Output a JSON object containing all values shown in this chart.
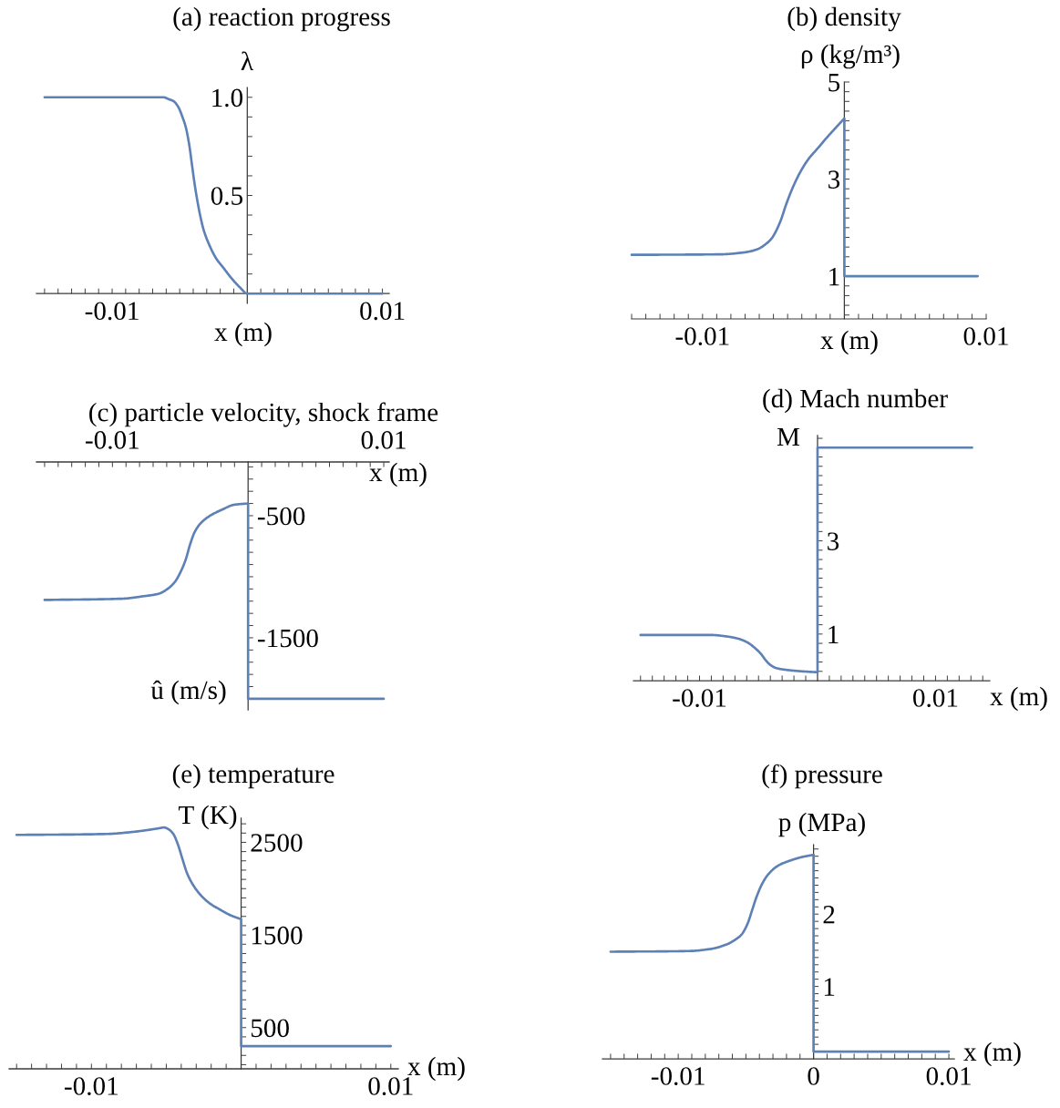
{
  "chart_data": [
    {
      "type": "line",
      "title": "(a) reaction progress",
      "xlabel": "x (m)",
      "ylabel": "λ",
      "xlim": [
        -0.0156,
        0.0105
      ],
      "ylim": [
        -0.05,
        1.05
      ],
      "xticks": [
        {
          "value": -0.015,
          "label": null
        },
        {
          "value": -0.014,
          "label": null
        },
        {
          "value": -0.013,
          "label": null
        },
        {
          "value": -0.012,
          "label": null
        },
        {
          "value": -0.011,
          "label": null
        },
        -0.01,
        {
          "value": -0.009,
          "label": null
        },
        {
          "value": -0.008,
          "label": null
        },
        {
          "value": -0.007,
          "label": null
        },
        {
          "value": -0.006,
          "label": null
        },
        {
          "value": -0.005,
          "label": null
        },
        {
          "value": -0.004,
          "label": null
        },
        {
          "value": -0.003,
          "label": null
        },
        {
          "value": -0.002,
          "label": null
        },
        {
          "value": -0.001,
          "label": null
        },
        {
          "value": 0.001,
          "label": null
        },
        {
          "value": 0.002,
          "label": null
        },
        {
          "value": 0.003,
          "label": null
        },
        {
          "value": 0.004,
          "label": null
        },
        {
          "value": 0.005,
          "label": null
        },
        {
          "value": 0.006,
          "label": null
        },
        {
          "value": 0.007,
          "label": null
        },
        {
          "value": 0.008,
          "label": null
        },
        {
          "value": 0.009,
          "label": null
        },
        0.01
      ],
      "yticks": [
        {
          "value": 0.1,
          "label": null
        },
        {
          "value": 0.2,
          "label": null
        },
        {
          "value": 0.3,
          "label": null
        },
        {
          "value": 0.4,
          "label": null
        },
        0.5,
        {
          "value": 0.6,
          "label": null
        },
        {
          "value": 0.7,
          "label": null
        },
        {
          "value": 0.8,
          "label": null
        },
        {
          "value": 0.9,
          "label": null
        },
        {
          "value": 1,
          "label": "1.0"
        }
      ],
      "series": [
        {
          "color": "#5e81b5",
          "x": [
            -0.015,
            -0.008,
            -0.0062,
            -0.0058,
            -0.00545,
            -0.0051,
            -0.0048,
            -0.00456,
            -0.0043,
            -0.0041,
            -0.0039,
            -0.00366,
            -0.00343,
            -0.00321,
            -0.00276,
            -0.00231,
            -0.00175,
            -0.00119,
            -0.00052,
            0,
            0.01
          ],
          "values": [
            1,
            1,
            1,
            0.99,
            0.98,
            0.95,
            0.9,
            0.85,
            0.76,
            0.66,
            0.56,
            0.46,
            0.38,
            0.32,
            0.24,
            0.18,
            0.13,
            0.08,
            0.03,
            0,
            0
          ]
        }
      ]
    },
    {
      "type": "line",
      "title": "(b) density",
      "xlabel": "x (m)",
      "ylabel": "ρ (kg/m³)",
      "xlim": [
        -0.015,
        0.01
      ],
      "ylim": [
        0.12,
        5
      ],
      "xticks": [
        {
          "value": -0.015,
          "label": null
        },
        {
          "value": -0.014,
          "label": null
        },
        {
          "value": -0.013,
          "label": null
        },
        {
          "value": -0.012,
          "label": null
        },
        {
          "value": -0.011,
          "label": null
        },
        -0.01,
        {
          "value": -0.009,
          "label": null
        },
        {
          "value": -0.008,
          "label": null
        },
        {
          "value": -0.007,
          "label": null
        },
        {
          "value": -0.006,
          "label": null
        },
        {
          "value": -0.005,
          "label": null
        },
        {
          "value": -0.004,
          "label": null
        },
        {
          "value": -0.003,
          "label": null
        },
        {
          "value": -0.002,
          "label": null
        },
        {
          "value": -0.001,
          "label": null
        },
        {
          "value": 0.001,
          "label": null
        },
        {
          "value": 0.002,
          "label": null
        },
        {
          "value": 0.003,
          "label": null
        },
        {
          "value": 0.004,
          "label": null
        },
        {
          "value": 0.005,
          "label": null
        },
        {
          "value": 0.006,
          "label": null
        },
        {
          "value": 0.007,
          "label": null
        },
        {
          "value": 0.008,
          "label": null
        },
        {
          "value": 0.009,
          "label": null
        },
        0.01
      ],
      "yticks": [
        {
          "value": 0.2,
          "label": null
        },
        {
          "value": 0.4,
          "label": null
        },
        {
          "value": 0.6,
          "label": null
        },
        {
          "value": 0.8,
          "label": null
        },
        1,
        {
          "value": 1.2,
          "label": null
        },
        {
          "value": 1.4,
          "label": null
        },
        {
          "value": 1.6,
          "label": null
        },
        {
          "value": 1.8,
          "label": null
        },
        {
          "value": 2,
          "label": null
        },
        {
          "value": 2.2,
          "label": null
        },
        {
          "value": 2.4,
          "label": null
        },
        {
          "value": 2.6,
          "label": null
        },
        {
          "value": 2.8,
          "label": null
        },
        3,
        {
          "value": 3.2,
          "label": null
        },
        {
          "value": 3.4,
          "label": null
        },
        {
          "value": 3.6,
          "label": null
        },
        {
          "value": 3.8,
          "label": null
        },
        {
          "value": 4,
          "label": null
        },
        {
          "value": 4.2,
          "label": null
        },
        {
          "value": 4.4,
          "label": null
        },
        {
          "value": 4.6,
          "label": null
        },
        {
          "value": 4.8,
          "label": null
        },
        5
      ],
      "series": [
        {
          "color": "#5e81b5",
          "x": [
            -0.015,
            -0.00877,
            -0.00705,
            -0.00609,
            -0.00555,
            -0.00512,
            -0.0048,
            -0.00447,
            -0.00415,
            -0.00383,
            -0.00351,
            -0.00308,
            -0.00254,
            -0.00189,
            -0.00125,
            -0.0006,
            0,
            0,
            0.0094
          ],
          "values": [
            1.44,
            1.45,
            1.49,
            1.56,
            1.66,
            1.78,
            1.94,
            2.16,
            2.44,
            2.69,
            2.91,
            3.16,
            3.41,
            3.63,
            3.85,
            4.06,
            4.25,
            1.0,
            1.0
          ]
        }
      ]
    },
    {
      "type": "line",
      "title": "(c) particle velocity, shock frame",
      "xlabel": "x (m)",
      "ylabel": "û (m/s)",
      "xlim": [
        -0.0156,
        0.0104
      ],
      "ylim": [
        -2090,
        -60
      ],
      "xticks": [
        {
          "value": -0.015,
          "label": null
        },
        {
          "value": -0.014,
          "label": null
        },
        {
          "value": -0.013,
          "label": null
        },
        {
          "value": -0.012,
          "label": null
        },
        {
          "value": -0.011,
          "label": null
        },
        -0.01,
        {
          "value": -0.009,
          "label": null
        },
        {
          "value": -0.008,
          "label": null
        },
        {
          "value": -0.007,
          "label": null
        },
        {
          "value": -0.006,
          "label": null
        },
        {
          "value": -0.005,
          "label": null
        },
        {
          "value": -0.004,
          "label": null
        },
        {
          "value": -0.003,
          "label": null
        },
        {
          "value": -0.002,
          "label": null
        },
        {
          "value": -0.001,
          "label": null
        },
        {
          "value": 0.001,
          "label": null
        },
        {
          "value": 0.002,
          "label": null
        },
        {
          "value": 0.003,
          "label": null
        },
        {
          "value": 0.004,
          "label": null
        },
        {
          "value": 0.005,
          "label": null
        },
        {
          "value": 0.006,
          "label": null
        },
        {
          "value": 0.007,
          "label": null
        },
        {
          "value": 0.008,
          "label": null
        },
        {
          "value": 0.009,
          "label": null
        },
        0.01
      ],
      "yticks": [
        {
          "value": -2000,
          "label": null
        },
        {
          "value": -1900,
          "label": null
        },
        {
          "value": -1800,
          "label": null
        },
        {
          "value": -1700,
          "label": null
        },
        {
          "value": -1600,
          "label": null
        },
        -1500,
        {
          "value": -1400,
          "label": null
        },
        {
          "value": -1300,
          "label": null
        },
        {
          "value": -1200,
          "label": null
        },
        {
          "value": -1100,
          "label": null
        },
        {
          "value": -1000,
          "label": null
        },
        {
          "value": -900,
          "label": null
        },
        {
          "value": -800,
          "label": null
        },
        {
          "value": -700,
          "label": null
        },
        {
          "value": -600,
          "label": null
        },
        -500,
        {
          "value": -400,
          "label": null
        },
        {
          "value": -300,
          "label": null
        },
        {
          "value": -200,
          "label": null
        },
        {
          "value": -100,
          "label": null
        }
      ],
      "series": [
        {
          "color": "#5e81b5",
          "x": [
            -0.015,
            -0.0093,
            -0.00774,
            -0.00661,
            -0.00594,
            -0.00538,
            -0.00493,
            -0.0046,
            -0.00426,
            -0.00392,
            -0.00348,
            -0.0028,
            -0.00191,
            -0.00101,
            0,
            0,
            0.01
          ],
          "values": [
            -1190,
            -1180,
            -1160,
            -1140,
            -1100,
            -1040,
            -950,
            -860,
            -730,
            -630,
            -560,
            -500,
            -450,
            -410,
            -400,
            -2000,
            -2000
          ]
        }
      ]
    },
    {
      "type": "line",
      "title": "(d) Mach number",
      "xlabel": "x (m)",
      "ylabel": "M",
      "xlim": [
        -0.0156,
        0.0146
      ],
      "ylim": [
        0,
        5.26
      ],
      "xticks": [
        {
          "value": -0.015,
          "label": null
        },
        {
          "value": -0.014,
          "label": null
        },
        {
          "value": -0.013,
          "label": null
        },
        {
          "value": -0.012,
          "label": null
        },
        {
          "value": -0.011,
          "label": null
        },
        -0.01,
        {
          "value": -0.009,
          "label": null
        },
        {
          "value": -0.008,
          "label": null
        },
        {
          "value": -0.007,
          "label": null
        },
        {
          "value": -0.006,
          "label": null
        },
        {
          "value": -0.005,
          "label": null
        },
        {
          "value": -0.004,
          "label": null
        },
        {
          "value": -0.003,
          "label": null
        },
        {
          "value": -0.002,
          "label": null
        },
        {
          "value": -0.001,
          "label": null
        },
        {
          "value": 0.001,
          "label": null
        },
        {
          "value": 0.002,
          "label": null
        },
        {
          "value": 0.003,
          "label": null
        },
        {
          "value": 0.004,
          "label": null
        },
        {
          "value": 0.005,
          "label": null
        },
        {
          "value": 0.006,
          "label": null
        },
        {
          "value": 0.007,
          "label": null
        },
        {
          "value": 0.008,
          "label": null
        },
        {
          "value": 0.009,
          "label": null
        },
        0.01,
        {
          "value": 0.011,
          "label": null
        },
        {
          "value": 0.012,
          "label": null
        },
        {
          "value": 0.013,
          "label": null
        },
        {
          "value": 0.014,
          "label": null
        }
      ],
      "yticks": [
        {
          "value": 0.2,
          "label": null
        },
        {
          "value": 0.4,
          "label": null
        },
        {
          "value": 0.6,
          "label": null
        },
        {
          "value": 0.8,
          "label": null
        },
        1,
        {
          "value": 1.2,
          "label": null
        },
        {
          "value": 1.4,
          "label": null
        },
        {
          "value": 1.6,
          "label": null
        },
        {
          "value": 1.8,
          "label": null
        },
        {
          "value": 2,
          "label": null
        },
        {
          "value": 2.2,
          "label": null
        },
        {
          "value": 2.4,
          "label": null
        },
        {
          "value": 2.6,
          "label": null
        },
        {
          "value": 2.8,
          "label": null
        },
        3,
        {
          "value": 3.2,
          "label": null
        },
        {
          "value": 3.4,
          "label": null
        },
        {
          "value": 3.6,
          "label": null
        },
        {
          "value": 3.8,
          "label": null
        },
        {
          "value": 4,
          "label": null
        },
        {
          "value": 4.2,
          "label": null
        },
        {
          "value": 4.4,
          "label": null
        },
        {
          "value": 4.6,
          "label": null
        },
        {
          "value": 4.8,
          "label": null
        },
        {
          "value": 5,
          "label": null
        },
        {
          "value": 5.2,
          "label": null
        }
      ],
      "series": [
        {
          "color": "#5e81b5",
          "x": [
            -0.015,
            -0.009,
            -0.00774,
            -0.00671,
            -0.00594,
            -0.0053,
            -0.00478,
            -0.0044,
            -0.00401,
            -0.0035,
            -0.0026,
            -0.00131,
            0,
            0,
            0.0131
          ],
          "values": [
            0.98,
            0.98,
            0.95,
            0.9,
            0.82,
            0.7,
            0.57,
            0.44,
            0.34,
            0.27,
            0.23,
            0.2,
            0.18,
            5.0,
            5.0
          ]
        }
      ]
    },
    {
      "type": "line",
      "title": "(e) temperature",
      "xlabel": "x (m)",
      "ylabel": "T (K)",
      "xlim": [
        -0.0155,
        0.0105
      ],
      "ylim": [
        55,
        2760
      ],
      "xticks": [
        {
          "value": -0.015,
          "label": null
        },
        {
          "value": -0.014,
          "label": null
        },
        {
          "value": -0.013,
          "label": null
        },
        {
          "value": -0.012,
          "label": null
        },
        {
          "value": -0.011,
          "label": null
        },
        -0.01,
        {
          "value": -0.009,
          "label": null
        },
        {
          "value": -0.008,
          "label": null
        },
        {
          "value": -0.007,
          "label": null
        },
        {
          "value": -0.006,
          "label": null
        },
        {
          "value": -0.005,
          "label": null
        },
        {
          "value": -0.004,
          "label": null
        },
        {
          "value": -0.003,
          "label": null
        },
        {
          "value": -0.002,
          "label": null
        },
        {
          "value": -0.001,
          "label": null
        },
        {
          "value": 0.001,
          "label": null
        },
        {
          "value": 0.002,
          "label": null
        },
        {
          "value": 0.003,
          "label": null
        },
        {
          "value": 0.004,
          "label": null
        },
        {
          "value": 0.005,
          "label": null
        },
        {
          "value": 0.006,
          "label": null
        },
        {
          "value": 0.007,
          "label": null
        },
        {
          "value": 0.008,
          "label": null
        },
        {
          "value": 0.009,
          "label": null
        },
        0.01
      ],
      "yticks": [
        {
          "value": 100,
          "label": null
        },
        {
          "value": 200,
          "label": null
        },
        {
          "value": 300,
          "label": null
        },
        {
          "value": 400,
          "label": null
        },
        500,
        {
          "value": 600,
          "label": null
        },
        {
          "value": 700,
          "label": null
        },
        {
          "value": 800,
          "label": null
        },
        {
          "value": 900,
          "label": null
        },
        {
          "value": 1000,
          "label": null
        },
        {
          "value": 1100,
          "label": null
        },
        {
          "value": 1200,
          "label": null
        },
        {
          "value": 1300,
          "label": null
        },
        {
          "value": 1400,
          "label": null
        },
        1500,
        {
          "value": 1600,
          "label": null
        },
        {
          "value": 1700,
          "label": null
        },
        {
          "value": 1800,
          "label": null
        },
        {
          "value": 1900,
          "label": null
        },
        {
          "value": 2000,
          "label": null
        },
        {
          "value": 2100,
          "label": null
        },
        {
          "value": 2200,
          "label": null
        },
        {
          "value": 2300,
          "label": null
        },
        {
          "value": 2400,
          "label": null
        },
        2500,
        {
          "value": 2600,
          "label": null
        },
        {
          "value": 2700,
          "label": null
        }
      ],
      "series": [
        {
          "color": "#5e81b5",
          "x": [
            -0.015,
            -0.009,
            -0.00738,
            -0.00636,
            -0.00555,
            -0.00514,
            -0.00484,
            -0.00453,
            -0.00423,
            -0.00392,
            -0.00362,
            -0.00321,
            -0.0027,
            -0.00209,
            -0.00148,
            -0.00067,
            0,
            0,
            0.01
          ],
          "values": [
            2580,
            2590,
            2610,
            2630,
            2650,
            2660,
            2640,
            2590,
            2480,
            2320,
            2170,
            2040,
            1930,
            1840,
            1780,
            1710,
            1670,
            300,
            300
          ]
        }
      ]
    },
    {
      "type": "line",
      "title": "(f) pressure",
      "xlabel": "x (m)",
      "ylabel": "p (MPa)",
      "xlim": [
        -0.0156,
        0.0104
      ],
      "ylim": [
        0,
        2.96
      ],
      "xticks": [
        {
          "value": -0.015,
          "label": null
        },
        {
          "value": -0.014,
          "label": null
        },
        {
          "value": -0.013,
          "label": null
        },
        {
          "value": -0.012,
          "label": null
        },
        {
          "value": -0.011,
          "label": null
        },
        -0.01,
        {
          "value": -0.009,
          "label": null
        },
        {
          "value": -0.008,
          "label": null
        },
        {
          "value": -0.007,
          "label": null
        },
        {
          "value": -0.006,
          "label": null
        },
        {
          "value": -0.005,
          "label": null
        },
        {
          "value": -0.004,
          "label": null
        },
        {
          "value": -0.003,
          "label": null
        },
        {
          "value": -0.002,
          "label": null
        },
        {
          "value": -0.001,
          "label": null
        },
        0,
        {
          "value": 0.001,
          "label": null
        },
        {
          "value": 0.002,
          "label": null
        },
        {
          "value": 0.003,
          "label": null
        },
        {
          "value": 0.004,
          "label": null
        },
        {
          "value": 0.005,
          "label": null
        },
        {
          "value": 0.006,
          "label": null
        },
        {
          "value": 0.007,
          "label": null
        },
        {
          "value": 0.008,
          "label": null
        },
        {
          "value": 0.009,
          "label": null
        },
        0.01
      ],
      "yticks": [
        {
          "value": 0.1,
          "label": null
        },
        {
          "value": 0.2,
          "label": null
        },
        {
          "value": 0.3,
          "label": null
        },
        {
          "value": 0.4,
          "label": null
        },
        {
          "value": 0.5,
          "label": null
        },
        {
          "value": 0.6,
          "label": null
        },
        {
          "value": 0.7,
          "label": null
        },
        {
          "value": 0.8,
          "label": null
        },
        {
          "value": 0.9,
          "label": null
        },
        1,
        {
          "value": 1.1,
          "label": null
        },
        {
          "value": 1.2,
          "label": null
        },
        {
          "value": 1.3,
          "label": null
        },
        {
          "value": 1.4,
          "label": null
        },
        {
          "value": 1.5,
          "label": null
        },
        {
          "value": 1.6,
          "label": null
        },
        {
          "value": 1.7,
          "label": null
        },
        {
          "value": 1.8,
          "label": null
        },
        {
          "value": 1.9,
          "label": null
        },
        2,
        {
          "value": 2.1,
          "label": null
        },
        {
          "value": 2.2,
          "label": null
        },
        {
          "value": 2.3,
          "label": null
        },
        {
          "value": 2.4,
          "label": null
        },
        {
          "value": 2.5,
          "label": null
        },
        {
          "value": 2.6,
          "label": null
        },
        {
          "value": 2.7,
          "label": null
        },
        {
          "value": 2.8,
          "label": null
        },
        {
          "value": 2.9,
          "label": null
        }
      ],
      "series": [
        {
          "color": "#5e81b5",
          "x": [
            -0.015,
            -0.00913,
            -0.00756,
            -0.00643,
            -0.00576,
            -0.00531,
            -0.00487,
            -0.00453,
            -0.00419,
            -0.00374,
            -0.0033,
            -0.00262,
            -0.00173,
            -0.00083,
            0,
            0,
            0.01
          ],
          "values": [
            1.48,
            1.49,
            1.52,
            1.58,
            1.65,
            1.72,
            1.87,
            2.06,
            2.25,
            2.44,
            2.56,
            2.67,
            2.74,
            2.79,
            2.82,
            0.1,
            0.1
          ]
        }
      ]
    }
  ]
}
